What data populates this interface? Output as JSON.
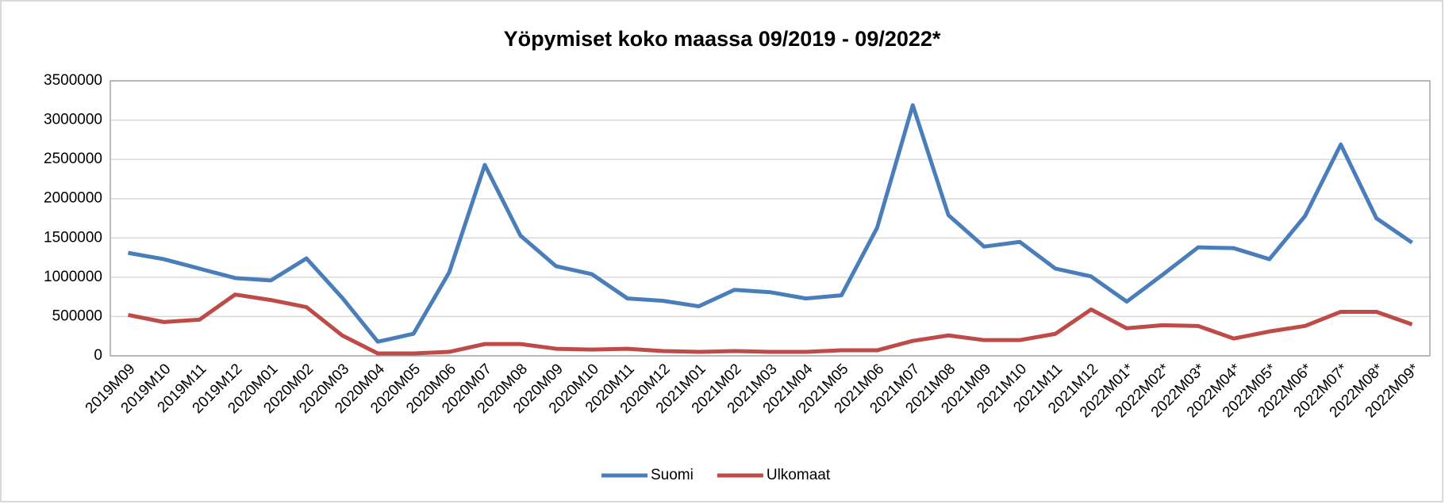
{
  "chart_data": {
    "type": "line",
    "title": "Yöpymiset koko maassa 09/2019 - 09/2022*",
    "categories": [
      "2019M09",
      "2019M10",
      "2019M11",
      "2019M12",
      "2020M01",
      "2020M02",
      "2020M03",
      "2020M04",
      "2020M05",
      "2020M06",
      "2020M07",
      "2020M08",
      "2020M09",
      "2020M10",
      "2020M11",
      "2020M12",
      "2021M01",
      "2021M02",
      "2021M03",
      "2021M04",
      "2021M05",
      "2021M06",
      "2021M07",
      "2021M08",
      "2021M09",
      "2021M10",
      "2021M11",
      "2021M12",
      "2022M01*",
      "2022M02*",
      "2022M03*",
      "2022M04*",
      "2022M05*",
      "2022M06*",
      "2022M07*",
      "2022M08*",
      "2022M09*"
    ],
    "series": [
      {
        "name": "Suomi",
        "color": "#4a7ebb",
        "values": [
          1310000,
          1230000,
          1110000,
          990000,
          960000,
          1240000,
          740000,
          180000,
          280000,
          1060000,
          2430000,
          1530000,
          1140000,
          1040000,
          730000,
          700000,
          630000,
          840000,
          810000,
          730000,
          770000,
          1630000,
          3190000,
          1790000,
          1390000,
          1450000,
          1110000,
          1010000,
          690000,
          1030000,
          1380000,
          1370000,
          1230000,
          1780000,
          2690000,
          1750000,
          1440000
        ]
      },
      {
        "name": "Ulkomaat",
        "color": "#be4b48",
        "values": [
          520000,
          430000,
          460000,
          780000,
          710000,
          620000,
          260000,
          30000,
          30000,
          50000,
          150000,
          150000,
          90000,
          80000,
          90000,
          60000,
          50000,
          60000,
          50000,
          50000,
          70000,
          70000,
          190000,
          260000,
          200000,
          200000,
          280000,
          590000,
          350000,
          390000,
          380000,
          220000,
          310000,
          380000,
          560000,
          560000,
          400000
        ]
      }
    ],
    "ylim": [
      0,
      3500000
    ],
    "yticks": [
      0,
      500000,
      1000000,
      1500000,
      2000000,
      2500000,
      3000000,
      3500000
    ],
    "grid": true,
    "legend": "bottom"
  }
}
